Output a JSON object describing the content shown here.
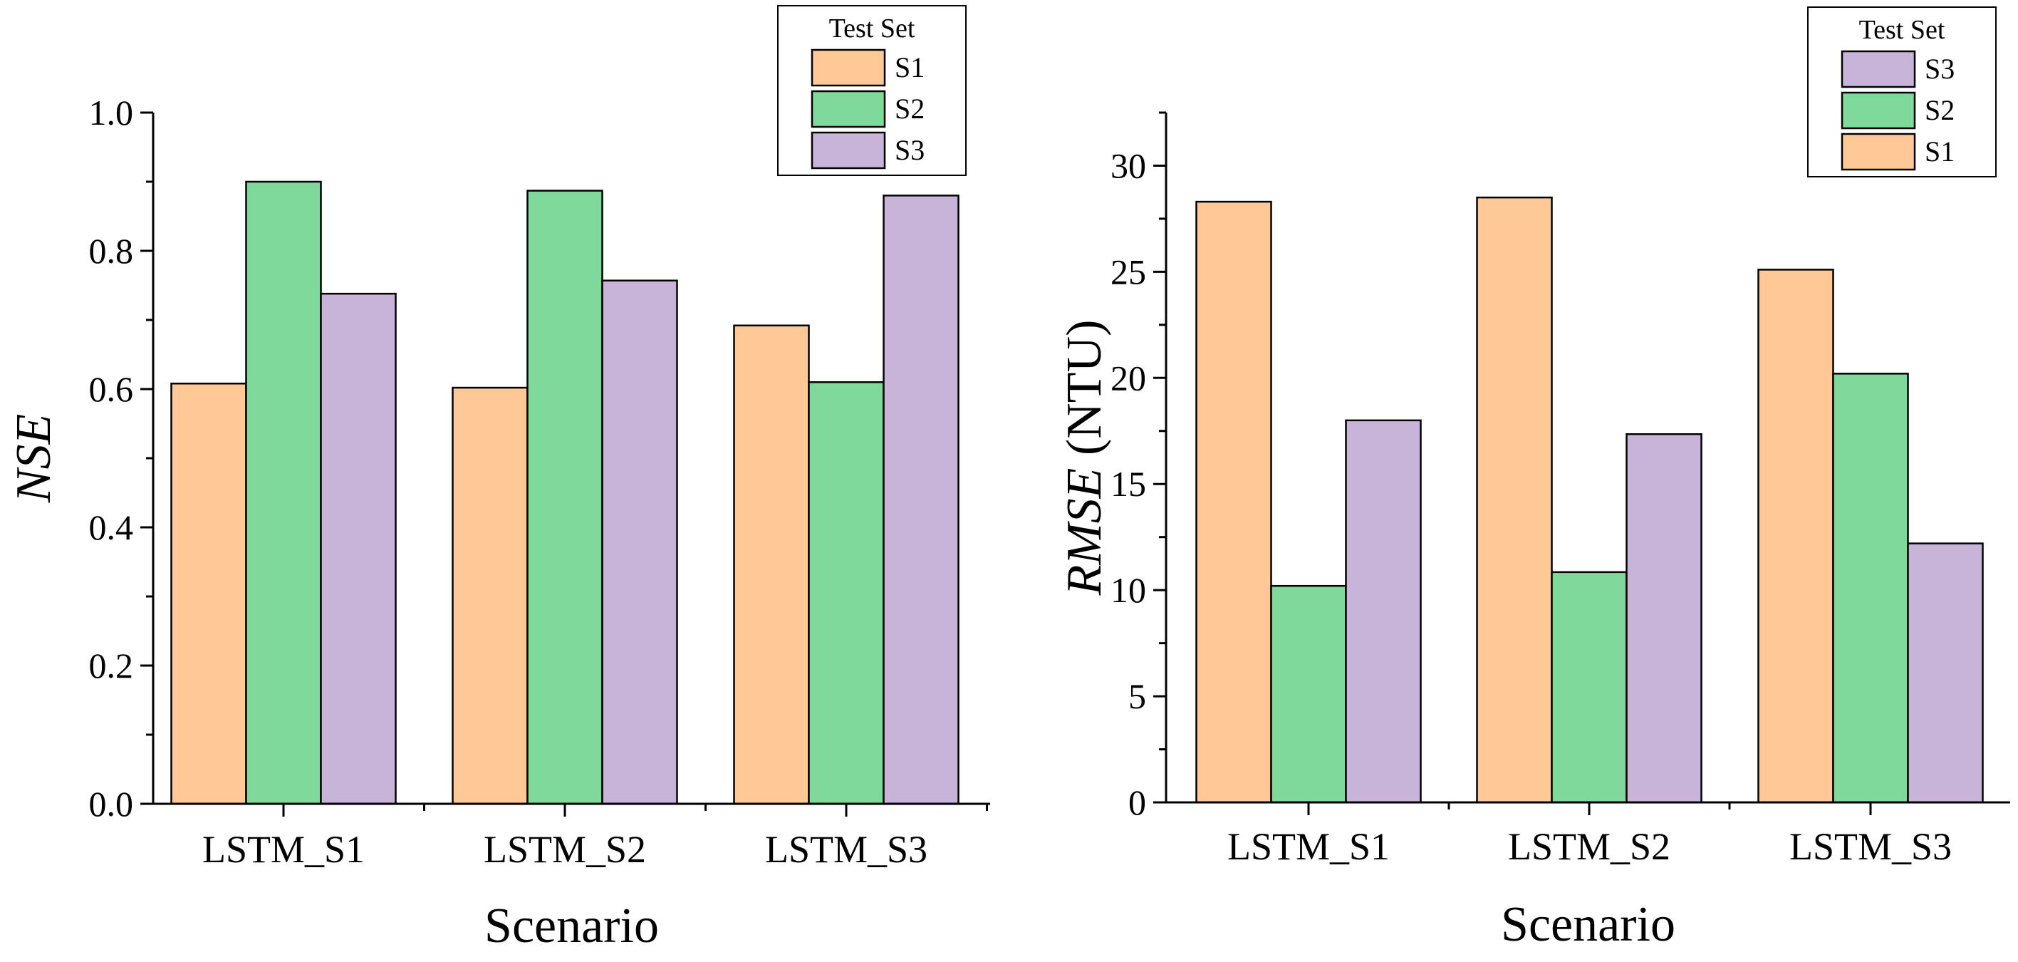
{
  "colors": {
    "S1": "#FFC896",
    "S2": "#7ED99A",
    "S3": "#C8B4D8"
  },
  "chart_data": [
    {
      "type": "bar",
      "categories": [
        "LSTM_S1",
        "LSTM_S2",
        "LSTM_S3"
      ],
      "series": [
        {
          "name": "S1",
          "values": [
            0.608,
            0.602,
            0.692
          ]
        },
        {
          "name": "S2",
          "values": [
            0.9,
            0.887,
            0.61
          ]
        },
        {
          "name": "S3",
          "values": [
            0.738,
            0.757,
            0.88
          ]
        }
      ],
      "series_order": [
        "S1",
        "S2",
        "S3"
      ],
      "legend_order": [
        "S1",
        "S2",
        "S3"
      ],
      "legend_title": "Test Set",
      "xlabel": "Scenario",
      "ylabel_italic": "NSE",
      "ylabel_suffix": "",
      "ylim": [
        0,
        1.0
      ],
      "yticks": [
        0,
        0.2,
        0.4,
        0.6,
        0.8,
        1.0
      ],
      "ytick_labels": [
        "0.0",
        "0.2",
        "0.4",
        "0.6",
        "0.8",
        "1.0"
      ],
      "yminor_step": 0.1,
      "legend_position": "top-right"
    },
    {
      "type": "bar",
      "categories": [
        "LSTM_S1",
        "LSTM_S2",
        "LSTM_S3"
      ],
      "series": [
        {
          "name": "S1",
          "values": [
            28.3,
            28.5,
            25.1
          ]
        },
        {
          "name": "S2",
          "values": [
            10.2,
            10.85,
            20.2
          ]
        },
        {
          "name": "S3",
          "values": [
            18.0,
            17.35,
            12.2
          ]
        }
      ],
      "series_order": [
        "S1",
        "S2",
        "S3"
      ],
      "legend_order": [
        "S3",
        "S2",
        "S1"
      ],
      "legend_title": "Test Set",
      "xlabel": "Scenario",
      "ylabel_italic": "RMSE",
      "ylabel_suffix": " (NTU)",
      "ylim": [
        0,
        32.5
      ],
      "yticks": [
        0,
        5,
        10,
        15,
        20,
        25,
        30
      ],
      "ytick_labels": [
        "0",
        "5",
        "10",
        "15",
        "20",
        "25",
        "30"
      ],
      "yminor_step": 2.5,
      "legend_position": "top-right"
    }
  ]
}
